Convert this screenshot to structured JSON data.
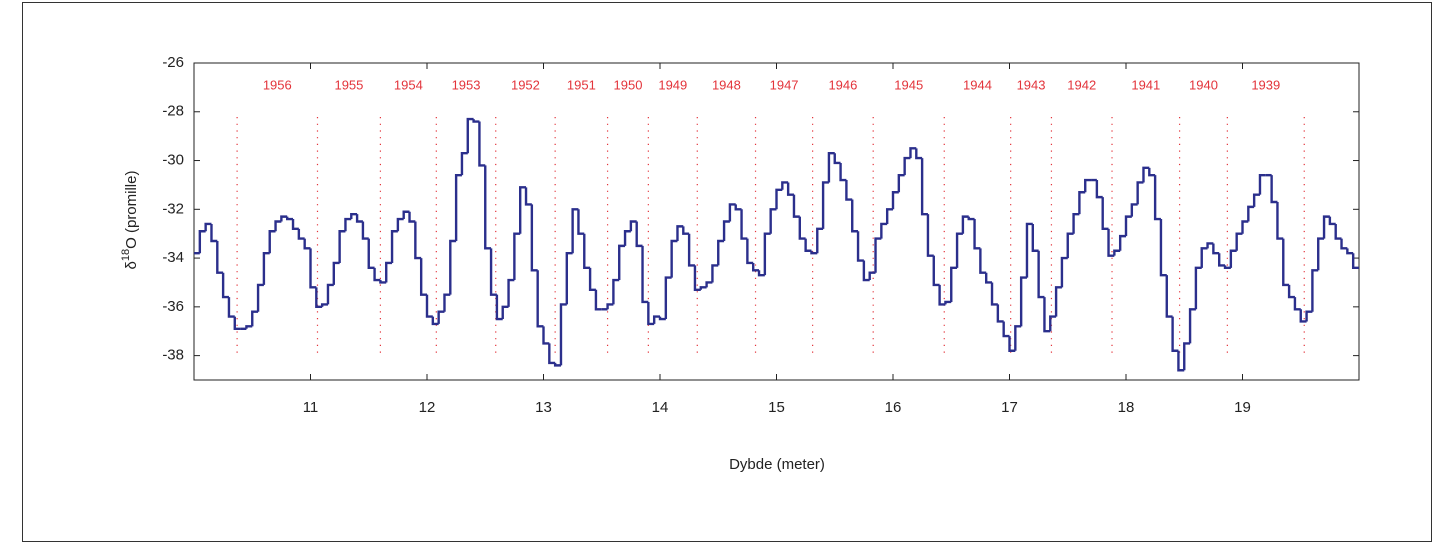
{
  "chart_data": {
    "type": "step",
    "xlabel": "Dybde (meter)",
    "ylabel": {
      "symbol": "δ",
      "superscript": "18",
      "text": "O (promille)"
    },
    "xlim": [
      10,
      20
    ],
    "ylim": [
      -39,
      -26
    ],
    "xticks": [
      11,
      12,
      13,
      14,
      15,
      16,
      17,
      18,
      19
    ],
    "yticks": [
      -26,
      -28,
      -30,
      -32,
      -34,
      -36,
      -38
    ],
    "color": "#2b2f8c",
    "x": [
      10,
      10.05,
      10.1,
      10.15,
      10.2,
      10.25,
      10.3,
      10.35,
      10.4,
      10.45,
      10.5,
      10.55,
      10.6,
      10.65,
      10.7,
      10.75,
      10.8,
      10.85,
      10.9,
      10.95,
      11,
      11.05,
      11.1,
      11.15,
      11.2,
      11.25,
      11.3,
      11.35,
      11.4,
      11.45,
      11.5,
      11.55,
      11.6,
      11.65,
      11.7,
      11.75,
      11.8,
      11.85,
      11.9,
      11.95,
      12,
      12.05,
      12.1,
      12.15,
      12.2,
      12.25,
      12.3,
      12.35,
      12.4,
      12.45,
      12.5,
      12.55,
      12.6,
      12.65,
      12.7,
      12.75,
      12.8,
      12.85,
      12.9,
      12.95,
      13,
      13.05,
      13.1,
      13.15,
      13.2,
      13.25,
      13.3,
      13.35,
      13.4,
      13.45,
      13.5,
      13.55,
      13.6,
      13.65,
      13.7,
      13.75,
      13.8,
      13.85,
      13.9,
      13.95,
      14,
      14.05,
      14.1,
      14.15,
      14.2,
      14.25,
      14.3,
      14.35,
      14.4,
      14.45,
      14.5,
      14.55,
      14.6,
      14.65,
      14.7,
      14.75,
      14.8,
      14.85,
      14.9,
      14.95,
      15,
      15.05,
      15.1,
      15.15,
      15.2,
      15.25,
      15.3,
      15.35,
      15.4,
      15.45,
      15.5,
      15.55,
      15.6,
      15.65,
      15.7,
      15.75,
      15.8,
      15.85,
      15.9,
      15.95,
      16,
      16.05,
      16.1,
      16.15,
      16.2,
      16.25,
      16.3,
      16.35,
      16.4,
      16.45,
      16.5,
      16.55,
      16.6,
      16.65,
      16.7,
      16.75,
      16.8,
      16.85,
      16.9,
      16.95,
      17,
      17.05,
      17.1,
      17.15,
      17.2,
      17.25,
      17.3,
      17.35,
      17.4,
      17.45,
      17.5,
      17.55,
      17.6,
      17.65,
      17.7,
      17.75,
      17.8,
      17.85,
      17.9,
      17.95,
      18,
      18.05,
      18.1,
      18.15,
      18.2,
      18.25,
      18.3,
      18.35,
      18.4,
      18.45,
      18.5,
      18.55,
      18.6,
      18.65,
      18.7,
      18.75,
      18.8,
      18.85,
      18.9,
      18.95,
      19,
      19.05,
      19.1,
      19.15,
      19.2,
      19.25,
      19.3,
      19.35,
      19.4,
      19.45,
      19.5,
      19.55,
      19.6,
      19.65,
      19.7,
      19.75,
      19.8,
      19.85,
      19.9,
      19.95
    ],
    "values": [
      -33.8,
      -32.9,
      -32.6,
      -33.3,
      -34.6,
      -35.6,
      -36.4,
      -36.9,
      -36.9,
      -36.8,
      -36.2,
      -35.1,
      -33.8,
      -32.9,
      -32.5,
      -32.3,
      -32.4,
      -32.8,
      -33.2,
      -33.6,
      -35.2,
      -36.0,
      -35.9,
      -35.1,
      -34.2,
      -32.9,
      -32.4,
      -32.2,
      -32.5,
      -33.2,
      -34.4,
      -34.9,
      -35.0,
      -34.2,
      -32.9,
      -32.4,
      -32.1,
      -32.5,
      -34.0,
      -35.5,
      -36.4,
      -36.7,
      -36.2,
      -35.5,
      -33.3,
      -30.6,
      -29.7,
      -28.3,
      -28.4,
      -30.2,
      -33.6,
      -35.5,
      -36.5,
      -36.0,
      -34.9,
      -33.0,
      -31.1,
      -31.8,
      -34.5,
      -36.8,
      -37.5,
      -38.3,
      -38.4,
      -35.9,
      -33.8,
      -32.0,
      -33.0,
      -34.4,
      -35.3,
      -36.1,
      -36.1,
      -35.9,
      -34.9,
      -33.5,
      -32.9,
      -32.5,
      -33.5,
      -35.8,
      -36.7,
      -36.4,
      -36.5,
      -34.8,
      -33.3,
      -32.7,
      -33.0,
      -34.3,
      -35.3,
      -35.2,
      -35.0,
      -34.3,
      -33.3,
      -32.5,
      -31.8,
      -32.0,
      -33.2,
      -34.2,
      -34.5,
      -34.7,
      -33.0,
      -32.0,
      -31.2,
      -30.9,
      -31.4,
      -32.3,
      -33.2,
      -33.7,
      -33.8,
      -32.8,
      -30.9,
      -29.7,
      -30.1,
      -30.8,
      -31.6,
      -32.9,
      -34.1,
      -34.9,
      -34.6,
      -33.2,
      -32.6,
      -32.0,
      -31.3,
      -30.6,
      -29.9,
      -29.5,
      -29.9,
      -32.2,
      -33.9,
      -35.1,
      -35.9,
      -35.8,
      -34.4,
      -33.0,
      -32.3,
      -32.4,
      -33.6,
      -34.6,
      -35.0,
      -35.9,
      -36.6,
      -37.2,
      -37.8,
      -36.8,
      -34.8,
      -32.6,
      -33.7,
      -35.6,
      -37.0,
      -36.4,
      -35.2,
      -34.0,
      -33.0,
      -32.2,
      -31.3,
      -30.8,
      -30.8,
      -31.5,
      -32.8,
      -33.9,
      -33.7,
      -33.1,
      -32.3,
      -31.8,
      -30.9,
      -30.3,
      -30.6,
      -32.4,
      -34.7,
      -36.4,
      -37.8,
      -38.6,
      -37.5,
      -36.1,
      -34.4,
      -33.6,
      -33.4,
      -33.8,
      -34.3,
      -34.4,
      -33.7,
      -33.0,
      -32.5,
      -31.9,
      -31.4,
      -30.6,
      -30.6,
      -31.7,
      -33.2,
      -35.1,
      -35.6,
      -36.1,
      -36.6,
      -36.2,
      -34.5,
      -33.2,
      -32.3,
      -32.6,
      -33.2,
      -33.6,
      -33.8,
      -34.4
    ],
    "year_color": "#e3343b",
    "year_boundaries": [
      10.37,
      11.06,
      11.6,
      12.08,
      12.59,
      13.1,
      13.55,
      13.9,
      14.32,
      14.82,
      15.31,
      15.83,
      16.44,
      17.01,
      17.36,
      17.88,
      18.46,
      18.87,
      19.53
    ],
    "years": [
      "1956",
      "1955",
      "1954",
      "1953",
      "1952",
      "1951",
      "1950",
      "1949",
      "1948",
      "1947",
      "1946",
      "1945",
      "1944",
      "1943",
      "1942",
      "1941",
      "1940",
      "1939"
    ]
  }
}
